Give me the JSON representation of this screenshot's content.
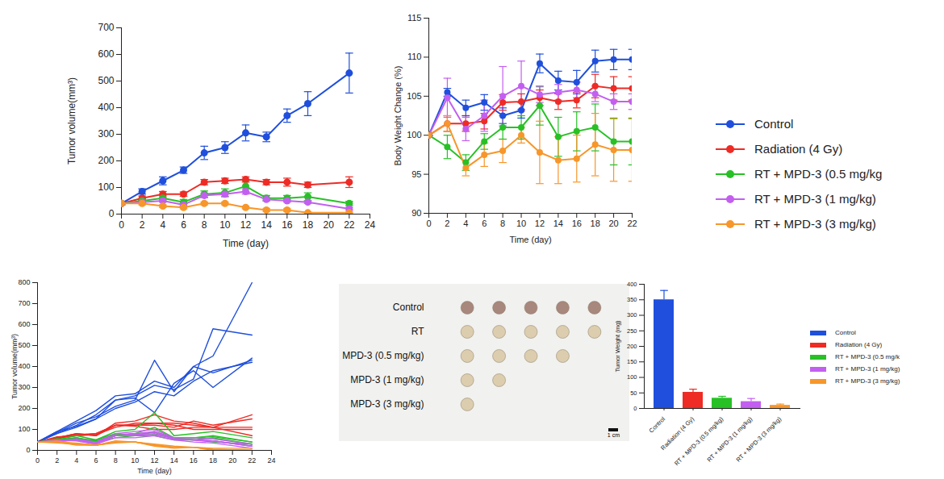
{
  "chart_data": [
    {
      "type": "line",
      "marker": "circle",
      "x_label": "Time (day)",
      "y_label": "Tumor volume(mm³)",
      "x": [
        0,
        2,
        4,
        6,
        8,
        10,
        12,
        14,
        16,
        18,
        22
      ],
      "xlim": [
        0,
        24
      ],
      "xticks": [
        0,
        2,
        4,
        6,
        8,
        10,
        12,
        14,
        16,
        18,
        20,
        22,
        24
      ],
      "ylim": [
        0,
        700
      ],
      "yticks": [
        0,
        100,
        200,
        300,
        400,
        500,
        600,
        700
      ],
      "series": [
        {
          "name": "Control",
          "color": "#1f4fdc",
          "values": [
            40,
            85,
            125,
            165,
            230,
            250,
            305,
            290,
            370,
            415,
            530
          ],
          "errors": [
            5,
            10,
            15,
            12,
            25,
            22,
            30,
            18,
            25,
            45,
            75
          ]
        },
        {
          "name": "Radiation (4 Gy)",
          "color": "#ee2b25",
          "values": [
            40,
            60,
            75,
            75,
            120,
            125,
            130,
            120,
            120,
            110,
            120
          ],
          "errors": [
            5,
            8,
            10,
            8,
            10,
            10,
            10,
            10,
            15,
            10,
            20
          ]
        },
        {
          "name": "RT + MPD-3 (0.5 mg/kg",
          "color": "#27c126",
          "values": [
            40,
            50,
            60,
            45,
            75,
            80,
            105,
            60,
            60,
            65,
            40
          ],
          "errors": [
            5,
            8,
            10,
            10,
            12,
            15,
            20,
            10,
            10,
            15,
            8
          ]
        },
        {
          "name": "RT + MPD-3 (1 mg/kg)",
          "color": "#c35ff0",
          "values": [
            40,
            45,
            50,
            35,
            70,
            75,
            85,
            55,
            50,
            45,
            20
          ],
          "errors": [
            5,
            5,
            5,
            5,
            8,
            8,
            10,
            5,
            5,
            5,
            5
          ]
        },
        {
          "name": "RT + MPD-3 (3 mg/kg)",
          "color": "#f7962a",
          "values": [
            40,
            40,
            30,
            25,
            40,
            40,
            25,
            15,
            15,
            5,
            5
          ],
          "errors": [
            5,
            5,
            5,
            5,
            5,
            5,
            5,
            5,
            5,
            3,
            3
          ]
        }
      ]
    },
    {
      "type": "line",
      "marker": "circle",
      "legend": "right",
      "x_label": "Time (day)",
      "y_label": "Body Weight Change (%)",
      "x": [
        0,
        2,
        4,
        6,
        8,
        10,
        12,
        14,
        16,
        18,
        20,
        22
      ],
      "xlim": [
        0,
        22
      ],
      "xticks": [
        0,
        2,
        4,
        6,
        8,
        10,
        12,
        14,
        16,
        18,
        20,
        22
      ],
      "ylim": [
        90,
        115
      ],
      "yticks": [
        90,
        95,
        100,
        105,
        110,
        115
      ],
      "series": [
        {
          "name": "Control",
          "color": "#1f4fdc",
          "values": [
            100,
            105.5,
            103.5,
            104.2,
            102.5,
            103.2,
            109.2,
            107,
            106.8,
            109.5,
            109.7,
            109.7
          ],
          "errors": [
            0,
            0.5,
            1,
            1,
            1,
            1,
            1.2,
            1.2,
            1.5,
            1.4,
            1.3,
            1.3
          ]
        },
        {
          "name": "Radiation (4 Gy)",
          "color": "#ee2b25",
          "values": [
            100,
            101.5,
            101.5,
            101.8,
            104.2,
            104.3,
            104.8,
            104.3,
            104.5,
            106.3,
            106,
            106
          ],
          "errors": [
            0,
            1,
            1,
            1,
            1,
            1,
            1,
            1,
            1,
            1.5,
            1.5,
            1.5
          ]
        },
        {
          "name": "RT + MPD-3 (0.5 mg/kg",
          "color": "#27c126",
          "values": [
            100,
            98.5,
            96.5,
            99.2,
            101,
            101,
            103.8,
            99.8,
            100.5,
            101,
            99.2,
            99.2
          ],
          "errors": [
            0,
            1.5,
            1,
            1,
            1.5,
            1.5,
            2.5,
            2.5,
            2.5,
            3,
            3,
            3
          ]
        },
        {
          "name": "RT + MPD-3 (1 mg/kg)",
          "color": "#c35ff0",
          "values": [
            100,
            104.8,
            100.8,
            102.5,
            105,
            106.3,
            105.2,
            105.5,
            105.8,
            105.3,
            104.3,
            104.3
          ],
          "errors": [
            0,
            2.5,
            1.5,
            2,
            3.8,
            3.2,
            1,
            1,
            1,
            1,
            1,
            1
          ]
        },
        {
          "name": "RT + MPD-3 (3 mg/kg)",
          "color": "#f7962a",
          "values": [
            100,
            101.5,
            95.8,
            97.5,
            98,
            100,
            97.8,
            96.8,
            97,
            98.8,
            98.1,
            98.1
          ],
          "errors": [
            0,
            1,
            1,
            1.5,
            1.5,
            1,
            4,
            3,
            3,
            4,
            4,
            4
          ]
        }
      ]
    },
    {
      "type": "line",
      "x_label": "Time (day)",
      "y_label": "Tumor volume(mm³)",
      "x": [
        0,
        2,
        4,
        6,
        8,
        10,
        12,
        14,
        16,
        18,
        22
      ],
      "xlim": [
        0,
        24
      ],
      "xticks": [
        0,
        2,
        4,
        6,
        8,
        10,
        12,
        14,
        16,
        18,
        20,
        22,
        24
      ],
      "ylim": [
        0,
        800
      ],
      "yticks": [
        0,
        100,
        200,
        300,
        400,
        500,
        600,
        700,
        800
      ],
      "series": [
        {
          "color": "#1f4fdc",
          "values": [
            40,
            90,
            140,
            190,
            260,
            270,
            330,
            300,
            400,
            450,
            800
          ]
        },
        {
          "color": "#1f4fdc",
          "values": [
            40,
            80,
            120,
            170,
            240,
            260,
            310,
            290,
            340,
            580,
            550
          ]
        },
        {
          "color": "#1f4fdc",
          "values": [
            40,
            85,
            130,
            160,
            210,
            240,
            430,
            280,
            400,
            370,
            430
          ]
        },
        {
          "color": "#1f4fdc",
          "values": [
            40,
            80,
            110,
            150,
            200,
            230,
            280,
            260,
            330,
            380,
            420
          ]
        },
        {
          "color": "#1f4fdc",
          "values": [
            40,
            90,
            115,
            150,
            240,
            250,
            180,
            320,
            380,
            300,
            440
          ]
        },
        {
          "color": "#ee2b25",
          "values": [
            40,
            60,
            80,
            70,
            130,
            140,
            170,
            140,
            130,
            110,
            170
          ]
        },
        {
          "color": "#ee2b25",
          "values": [
            40,
            55,
            75,
            80,
            120,
            120,
            120,
            110,
            140,
            120,
            150
          ]
        },
        {
          "color": "#ee2b25",
          "values": [
            40,
            65,
            70,
            75,
            110,
            130,
            130,
            120,
            100,
            100,
            100
          ]
        },
        {
          "color": "#ee2b25",
          "values": [
            40,
            60,
            80,
            70,
            120,
            120,
            130,
            130,
            120,
            110,
            110
          ]
        },
        {
          "color": "#ee2b25",
          "values": [
            40,
            60,
            70,
            80,
            120,
            115,
            100,
            100,
            110,
            110,
            70
          ]
        },
        {
          "color": "#27c126",
          "values": [
            40,
            50,
            70,
            50,
            90,
            100,
            180,
            70,
            80,
            90,
            60
          ]
        },
        {
          "color": "#27c126",
          "values": [
            40,
            45,
            60,
            40,
            70,
            80,
            110,
            60,
            60,
            70,
            40
          ]
        },
        {
          "color": "#27c126",
          "values": [
            40,
            55,
            50,
            50,
            80,
            70,
            90,
            60,
            50,
            60,
            30
          ]
        },
        {
          "color": "#27c126",
          "values": [
            40,
            50,
            60,
            40,
            60,
            70,
            70,
            50,
            50,
            40,
            30
          ]
        },
        {
          "color": "#27c126",
          "values": [
            40,
            50,
            60,
            45,
            75,
            80,
            75,
            60,
            60,
            65,
            40
          ]
        },
        {
          "color": "#c35ff0",
          "values": [
            40,
            45,
            50,
            40,
            80,
            90,
            100,
            60,
            60,
            55,
            30
          ]
        },
        {
          "color": "#c35ff0",
          "values": [
            40,
            45,
            50,
            30,
            60,
            60,
            70,
            50,
            40,
            35,
            10
          ]
        },
        {
          "color": "#c35ff0",
          "values": [
            40,
            40,
            50,
            35,
            70,
            75,
            85,
            55,
            50,
            45,
            20
          ]
        },
        {
          "color": "#c35ff0",
          "values": [
            40,
            50,
            45,
            30,
            70,
            70,
            80,
            55,
            50,
            45,
            20
          ]
        },
        {
          "color": "#c35ff0",
          "values": [
            40,
            45,
            55,
            40,
            70,
            80,
            90,
            55,
            50,
            45,
            20
          ]
        },
        {
          "color": "#f7962a",
          "values": [
            40,
            40,
            30,
            25,
            40,
            40,
            25,
            15,
            15,
            10,
            10
          ]
        },
        {
          "color": "#f7962a",
          "values": [
            40,
            35,
            30,
            25,
            45,
            40,
            30,
            20,
            15,
            5,
            0
          ]
        },
        {
          "color": "#f7962a",
          "values": [
            40,
            40,
            35,
            25,
            40,
            40,
            25,
            15,
            15,
            5,
            0
          ]
        },
        {
          "color": "#f7962a",
          "values": [
            40,
            45,
            30,
            25,
            35,
            40,
            20,
            10,
            15,
            5,
            0
          ]
        },
        {
          "color": "#f7962a",
          "values": [
            40,
            40,
            25,
            25,
            40,
            40,
            25,
            15,
            15,
            0,
            0
          ]
        }
      ]
    },
    {
      "type": "image",
      "scale_bar": "1 cm",
      "rows": [
        {
          "label": "Control",
          "count": 5,
          "color": "#a8877d"
        },
        {
          "label": "RT",
          "count": 5,
          "color": "#dccdae"
        },
        {
          "label": "MPD-3 (0.5 mg/kg)",
          "count": 4,
          "color": "#dccdae"
        },
        {
          "label": "MPD-3 (1 mg/kg)",
          "count": 2,
          "color": "#dccdae"
        },
        {
          "label": "MPD-3 (3 mg/kg)",
          "count": 1,
          "color": "#dccdae"
        }
      ]
    },
    {
      "type": "bar",
      "legend": "right",
      "y_label": "Tumor Weight (mg)",
      "categories": [
        "Control",
        "Radiation (4 Gy)",
        "RT + MPD-3 (0.5 mg/kg)",
        "RT + MPD-3 (1 mg/kg)",
        "RT + MPD-3 (3 mg/kg)"
      ],
      "ylim": [
        0,
        400
      ],
      "yticks": [
        0,
        50,
        100,
        150,
        200,
        250,
        300,
        350,
        400
      ],
      "series": [
        {
          "name": "Control",
          "color": "#1f4fdc",
          "values": [
            350,
            null,
            null,
            null,
            null
          ],
          "errors": [
            30,
            null,
            null,
            null,
            null
          ]
        },
        {
          "name": "Radiation (4 Gy)",
          "color": "#ee2b25",
          "values": [
            null,
            52,
            null,
            null,
            null
          ],
          "errors": [
            null,
            10,
            null,
            null,
            null
          ]
        },
        {
          "name": "RT + MPD-3 (0.5 mg/k",
          "color": "#27c126",
          "values": [
            null,
            null,
            33,
            null,
            null
          ],
          "errors": [
            null,
            null,
            6,
            null,
            null
          ]
        },
        {
          "name": "RT + MPD-3 (1 mg/kg)",
          "color": "#c35ff0",
          "values": [
            null,
            null,
            null,
            22,
            null
          ],
          "errors": [
            null,
            null,
            null,
            10,
            null
          ]
        },
        {
          "name": "RT + MPD-3 (3 mg/kg)",
          "color": "#f7962a",
          "values": [
            null,
            null,
            null,
            null,
            10
          ],
          "errors": [
            null,
            null,
            null,
            null,
            4
          ]
        }
      ]
    }
  ]
}
